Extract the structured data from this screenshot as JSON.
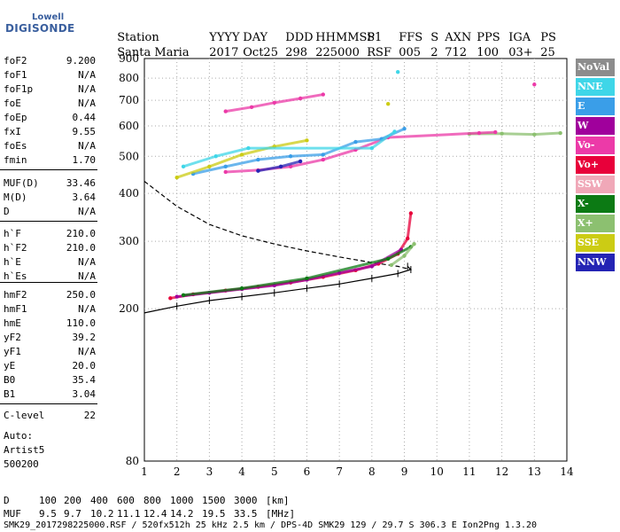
{
  "logo": {
    "top": "Lowell",
    "main": "DIGISONDE"
  },
  "header": {
    "labels": [
      "Station",
      "YYYY",
      "DAY",
      "DDD",
      "HHMMSS",
      "P1",
      "FFS",
      "S",
      "AXN",
      "PPS",
      "IGA",
      "PS"
    ],
    "values": [
      "Santa Maria",
      "2017",
      "Oct25",
      "298",
      "225000",
      "RSF",
      "005",
      "2",
      "712",
      "100",
      "03+",
      "25"
    ]
  },
  "params": [
    {
      "name": "foF2",
      "value": "9.200"
    },
    {
      "name": "foF1",
      "value": "N/A"
    },
    {
      "name": "foF1p",
      "value": "N/A"
    },
    {
      "name": "foE",
      "value": "N/A"
    },
    {
      "name": "foEp",
      "value": "0.44"
    },
    {
      "name": "fxI",
      "value": "9.55"
    },
    {
      "name": "foEs",
      "value": "N/A"
    },
    {
      "name": "fmin",
      "value": "1.70"
    },
    {
      "name": "MUF(D)",
      "value": "33.46"
    },
    {
      "name": "M(D)",
      "value": "3.64"
    },
    {
      "name": "D",
      "value": "N/A"
    },
    {
      "name": "h`F",
      "value": "210.0"
    },
    {
      "name": "h`F2",
      "value": "210.0"
    },
    {
      "name": "h`E",
      "value": "N/A"
    },
    {
      "name": "h`Es",
      "value": "N/A"
    },
    {
      "name": "hmF2",
      "value": "250.0"
    },
    {
      "name": "hmF1",
      "value": "N/A"
    },
    {
      "name": "hmE",
      "value": "110.0"
    },
    {
      "name": "yF2",
      "value": "39.2"
    },
    {
      "name": "yF1",
      "value": "N/A"
    },
    {
      "name": "yE",
      "value": "20.0"
    },
    {
      "name": "B0",
      "value": "35.4"
    },
    {
      "name": "B1",
      "value": "3.04"
    },
    {
      "name": "C-level",
      "value": "22"
    }
  ],
  "auto": {
    "label": "Auto:",
    "name": "Artist5",
    "version": "500200"
  },
  "legend": [
    {
      "label": "NoVal",
      "bg": "#8c8c8c",
      "fg": "#ffffff"
    },
    {
      "label": "NNE",
      "bg": "#3fd6e8",
      "fg": "#ffffff"
    },
    {
      "label": "E",
      "bg": "#3a9ee8",
      "fg": "#ffffff"
    },
    {
      "label": "W",
      "bg": "#a0009c",
      "fg": "#ffffff"
    },
    {
      "label": "Vo-",
      "bg": "#ec3aa8",
      "fg": "#ffffff"
    },
    {
      "label": "Vo+",
      "bg": "#e8003a",
      "fg": "#ffffff"
    },
    {
      "label": "SSW",
      "bg": "#f0a8b8",
      "fg": "#ffffff"
    },
    {
      "label": "X-",
      "bg": "#0c7a14",
      "fg": "#ffffff"
    },
    {
      "label": "X+",
      "bg": "#8cc070",
      "fg": "#ffffff"
    },
    {
      "label": "SSE",
      "bg": "#cccc14",
      "fg": "#ffffff"
    },
    {
      "label": "NNW",
      "bg": "#2424b4",
      "fg": "#ffffff"
    }
  ],
  "footer": {
    "d_label": "D",
    "d_values": [
      "100",
      "200",
      "400",
      "600",
      "800",
      "1000",
      "1500",
      "3000"
    ],
    "d_unit": "[km]",
    "muf_label": "MUF",
    "muf_values": [
      "9.5",
      "9.7",
      "10.2",
      "11.1",
      "12.4",
      "14.2",
      "19.5",
      "33.5"
    ],
    "muf_unit": "[MHz]",
    "file_info": "SMK29_2017298225000.RSF / 520fx512h 25 kHz 2.5 km / DPS-4D SMK29 129 / 29.7 S 306.3 E Ion2Png 1.3.20"
  },
  "chart_data": {
    "type": "scatter",
    "xlim": [
      1,
      14
    ],
    "ylim": [
      80,
      900
    ],
    "y_scale": "log",
    "x_ticks": [
      1,
      2,
      3,
      4,
      5,
      6,
      7,
      8,
      9,
      10,
      11,
      12,
      13,
      14
    ],
    "y_ticks": [
      80,
      200,
      300,
      400,
      500,
      600,
      700,
      800,
      900
    ],
    "grid": "dotted",
    "legend_position": "right",
    "series": [
      {
        "color": "#e8003a",
        "points": [
          [
            1.8,
            213
          ],
          [
            2.5,
            218
          ],
          [
            3.5,
            223
          ],
          [
            4.5,
            228
          ],
          [
            5.5,
            234
          ],
          [
            6.5,
            242
          ],
          [
            7.5,
            252
          ],
          [
            8.2,
            262
          ],
          [
            8.8,
            278
          ],
          [
            9.1,
            305
          ],
          [
            9.2,
            355
          ]
        ]
      },
      {
        "color": "#a0009c",
        "points": [
          [
            2,
            215
          ],
          [
            3,
            220
          ],
          [
            4,
            225
          ],
          [
            5,
            230
          ],
          [
            6,
            238
          ],
          [
            7,
            248
          ],
          [
            8,
            258
          ],
          [
            8.9,
            285
          ]
        ]
      },
      {
        "color": "#0c7a14",
        "points": [
          [
            2.2,
            217
          ],
          [
            4,
            226
          ],
          [
            6,
            240
          ],
          [
            8.5,
            270
          ],
          [
            9.2,
            290
          ]
        ]
      },
      {
        "color": "#8cc070",
        "points": [
          [
            8.6,
            260
          ],
          [
            9.0,
            275
          ],
          [
            9.3,
            295
          ],
          [
            11,
            572
          ],
          [
            12,
            573
          ],
          [
            13,
            570
          ],
          [
            13.8,
            575
          ]
        ]
      },
      {
        "color": "#ec3aa8",
        "points": [
          [
            3.5,
            655
          ],
          [
            4.3,
            672
          ],
          [
            5,
            690
          ],
          [
            5.8,
            708
          ],
          [
            6.5,
            725
          ],
          [
            3.5,
            455
          ],
          [
            4.5,
            460
          ],
          [
            5.5,
            470
          ],
          [
            6.5,
            490
          ],
          [
            7.5,
            520
          ],
          [
            8.5,
            560
          ],
          [
            11.3,
            575
          ],
          [
            11.8,
            578
          ],
          [
            13,
            770
          ]
        ]
      },
      {
        "color": "#3a9ee8",
        "points": [
          [
            2.5,
            450
          ],
          [
            3.5,
            470
          ],
          [
            4.5,
            490
          ],
          [
            5.5,
            500
          ],
          [
            6.5,
            505
          ],
          [
            7.5,
            545
          ],
          [
            8.3,
            555
          ],
          [
            9,
            590
          ]
        ]
      },
      {
        "color": "#cccc14",
        "points": [
          [
            2,
            440
          ],
          [
            3,
            470
          ],
          [
            4,
            505
          ],
          [
            5,
            530
          ],
          [
            6,
            550
          ],
          [
            8.5,
            685
          ]
        ]
      },
      {
        "color": "#3fd6e8",
        "points": [
          [
            2.2,
            470
          ],
          [
            3.2,
            500
          ],
          [
            4.2,
            525
          ],
          [
            8,
            525
          ],
          [
            8.7,
            580
          ],
          [
            8.8,
            830
          ]
        ]
      },
      {
        "color": "#2424b4",
        "points": [
          [
            4.5,
            458
          ],
          [
            5.2,
            470
          ],
          [
            5.8,
            485
          ]
        ]
      }
    ],
    "profile_lines": [
      {
        "style": "solid",
        "points": [
          [
            1,
            195
          ],
          [
            2,
            203
          ],
          [
            3,
            210
          ],
          [
            4,
            215
          ],
          [
            5,
            220
          ],
          [
            6,
            226
          ],
          [
            7,
            232
          ],
          [
            8,
            240
          ],
          [
            8.8,
            247
          ],
          [
            9.2,
            253
          ],
          [
            9.1,
            258
          ]
        ]
      },
      {
        "style": "dashed",
        "points": [
          [
            1,
            430
          ],
          [
            2,
            370
          ],
          [
            3,
            332
          ],
          [
            4,
            310
          ],
          [
            5,
            295
          ],
          [
            6,
            283
          ],
          [
            7,
            273
          ],
          [
            8,
            264
          ],
          [
            8.8,
            258
          ],
          [
            9.2,
            253
          ]
        ]
      }
    ]
  }
}
